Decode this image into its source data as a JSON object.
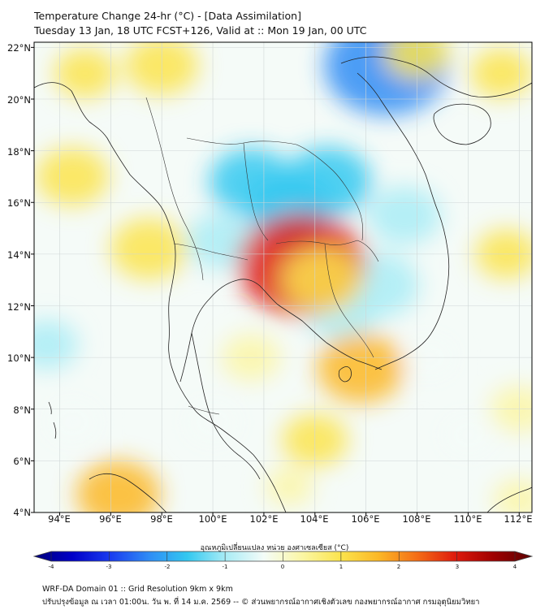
{
  "title_line1": "Temperature Change 24-hr (°C) - [Data Assimilation]",
  "title_line2": "Tuesday 13 Jan, 18 UTC FCST+126, Valid at :: Mon 19 Jan, 00 UTC",
  "map": {
    "lon_range": [
      93,
      112.5
    ],
    "lat_range": [
      4,
      22.2
    ],
    "lat_labels": [
      "22°N",
      "20°N",
      "18°N",
      "16°N",
      "14°N",
      "12°N",
      "10°N",
      "8°N",
      "6°N",
      "4°N"
    ],
    "lon_labels": [
      "94°E",
      "96°E",
      "98°E",
      "100°E",
      "102°E",
      "104°E",
      "106°E",
      "108°E",
      "110°E",
      "112°E"
    ],
    "anomalies": [
      {
        "lon": 104.5,
        "lat": 16.8,
        "value": -1.4
      },
      {
        "lon": 101.5,
        "lat": 16.8,
        "value": -1.3
      },
      {
        "lon": 103.0,
        "lat": 15.8,
        "value": -1.3
      },
      {
        "lon": 106.8,
        "lat": 21.3,
        "value": -2.4
      },
      {
        "lon": 106.5,
        "lat": 12.8,
        "value": -1.2
      },
      {
        "lon": 105.0,
        "lat": 11.8,
        "value": -1.0
      },
      {
        "lon": 107.5,
        "lat": 15.5,
        "value": -1.0
      },
      {
        "lon": 100.3,
        "lat": 14.5,
        "value": -0.9
      },
      {
        "lon": 103.5,
        "lat": 13.6,
        "value": 2.5
      },
      {
        "lon": 104.3,
        "lat": 13.0,
        "value": 1.2
      },
      {
        "lon": 97.5,
        "lat": 14.2,
        "value": 1.1
      },
      {
        "lon": 94.5,
        "lat": 17.0,
        "value": 1.0
      },
      {
        "lon": 98.0,
        "lat": 21.3,
        "value": 1.0
      },
      {
        "lon": 95.0,
        "lat": 21.0,
        "value": 0.7
      },
      {
        "lon": 105.8,
        "lat": 9.6,
        "value": 1.4
      },
      {
        "lon": 96.3,
        "lat": 4.7,
        "value": 1.3
      },
      {
        "lon": 104.0,
        "lat": 6.8,
        "value": 0.8
      },
      {
        "lon": 101.5,
        "lat": 10.0,
        "value": 0.6
      },
      {
        "lon": 108.0,
        "lat": 21.8,
        "value": 0.8
      },
      {
        "lon": 111.3,
        "lat": 21.0,
        "value": 0.7
      },
      {
        "lon": 111.5,
        "lat": 14.0,
        "value": 0.7
      },
      {
        "lon": 112.0,
        "lat": 8.0,
        "value": 0.6
      },
      {
        "lon": 112.0,
        "lat": 4.5,
        "value": 0.4
      },
      {
        "lon": 93.5,
        "lat": 10.5,
        "value": -0.7
      },
      {
        "lon": 94.5,
        "lat": 7.5,
        "value": -0.5
      },
      {
        "lon": 108.5,
        "lat": 10.0,
        "value": -0.4
      },
      {
        "lon": 110.0,
        "lat": 7.0,
        "value": -0.4
      },
      {
        "lon": 100.0,
        "lat": 7.5,
        "value": -0.5
      },
      {
        "lon": 103.0,
        "lat": 5.0,
        "value": 0.3
      }
    ]
  },
  "colorbar": {
    "label": "อุณหภูมิเปลี่ยนแปลง หน่วย องศาเซลเซียส (°C)",
    "min": -4,
    "max": 4,
    "tick_values": [
      -4,
      -3,
      -2,
      -1,
      0,
      1,
      2,
      3,
      4
    ],
    "tick_labels": [
      "-4",
      "-3",
      "-2",
      "-1",
      "0",
      "1",
      "2",
      "3",
      "4"
    ],
    "colors": [
      "#00007a",
      "#0000c8",
      "#1a3cf0",
      "#2f8cf5",
      "#33c8f0",
      "#a9ecf6",
      "#f4fcf8",
      "#fbf6a5",
      "#fbe44e",
      "#fbb726",
      "#f46d16",
      "#de1a0c",
      "#9e0000",
      "#5c0000"
    ]
  },
  "footer_line1": "WRF-DA Domain 01 :: Grid Resolution 9km x 9km",
  "footer_line2": "ปรับปรุงข้อมูล ณ เวลา 01:00น. วัน พ. ที่ 14 ม.ค. 2569 -- © ส่วนพยากรณ์อากาศเชิงตัวเลข กองพยากรณ์อากาศ กรมอุตุนิยมวิทยา"
}
